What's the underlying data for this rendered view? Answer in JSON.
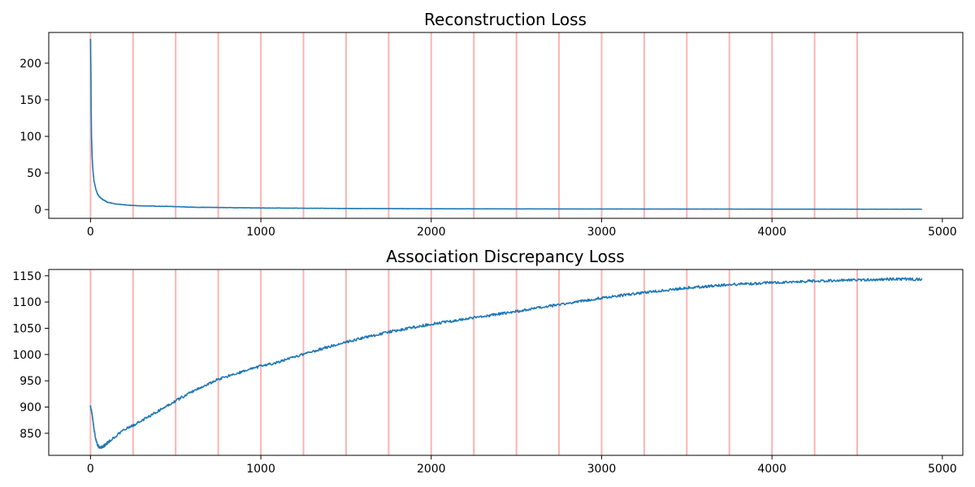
{
  "chart_data": [
    {
      "type": "line",
      "title": "Reconstruction Loss",
      "xlabel": "",
      "ylabel": "",
      "xlim": [
        -245,
        5120
      ],
      "ylim": [
        -12,
        242
      ],
      "xticks": [
        0,
        1000,
        2000,
        3000,
        4000,
        5000
      ],
      "yticks": [
        0,
        50,
        100,
        150,
        200
      ],
      "grid": false,
      "legend": "none",
      "vertical_lines": [
        0,
        250,
        500,
        750,
        1000,
        1250,
        1500,
        1750,
        2000,
        2250,
        2500,
        2750,
        3000,
        3250,
        3500,
        3750,
        4000,
        4250,
        4500
      ],
      "vertical_line_color": "#ff0000",
      "series_color": "#1f77b4",
      "series": [
        {
          "x": [
            0,
            2,
            4,
            6,
            8,
            10,
            15,
            20,
            30,
            40,
            50,
            70,
            100,
            150,
            200,
            250,
            300,
            400,
            500,
            600,
            750,
            1000,
            1250,
            1500,
            1750,
            2000,
            2500,
            3000,
            3500,
            4000,
            4500,
            4880
          ],
          "values": [
            233,
            200,
            140,
            100,
            85,
            70,
            52,
            40,
            29,
            22,
            18,
            14,
            10,
            7.5,
            6.5,
            5.5,
            5,
            4.5,
            4,
            3.2,
            2.8,
            2.2,
            1.8,
            1.5,
            1.3,
            1.1,
            0.9,
            0.8,
            0.7,
            0.6,
            0.5,
            0.5
          ]
        }
      ]
    },
    {
      "type": "line",
      "title": "Association Discrepancy Loss",
      "xlabel": "",
      "ylabel": "",
      "xlim": [
        -245,
        5120
      ],
      "ylim": [
        808,
        1162
      ],
      "xticks": [
        0,
        1000,
        2000,
        3000,
        4000,
        5000
      ],
      "yticks": [
        850,
        900,
        950,
        1000,
        1050,
        1100,
        1150
      ],
      "grid": false,
      "legend": "none",
      "vertical_lines": [
        0,
        250,
        500,
        750,
        1000,
        1250,
        1500,
        1750,
        2000,
        2250,
        2500,
        2750,
        3000,
        3250,
        3500,
        3750,
        4000,
        4250,
        4500
      ],
      "vertical_line_color": "#ff0000",
      "series_color": "#1f77b4",
      "series": [
        {
          "x": [
            0,
            10,
            20,
            30,
            40,
            50,
            60,
            80,
            100,
            150,
            200,
            250,
            300,
            400,
            500,
            600,
            700,
            750,
            800,
            900,
            1000,
            1100,
            1250,
            1500,
            1750,
            2000,
            2250,
            2500,
            2750,
            3000,
            3250,
            3500,
            3750,
            4000,
            4250,
            4500,
            4750,
            4880
          ],
          "values": [
            902,
            885,
            860,
            840,
            828,
            824,
            823,
            826,
            832,
            845,
            857,
            865,
            874,
            893,
            912,
            930,
            945,
            953,
            958,
            968,
            978,
            985,
            1001,
            1024,
            1043,
            1058,
            1070,
            1082,
            1095,
            1108,
            1118,
            1127,
            1133,
            1137,
            1140,
            1142,
            1144,
            1143
          ]
        }
      ]
    }
  ]
}
